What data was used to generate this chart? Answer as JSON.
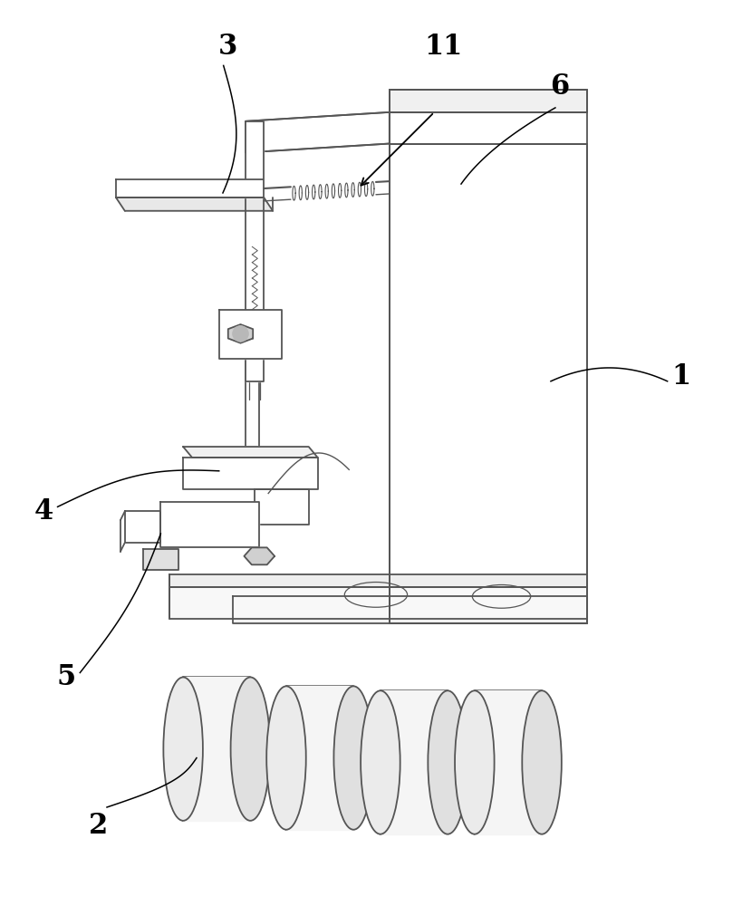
{
  "bg_color": "#ffffff",
  "line_color": "#555555",
  "label_color": "#000000",
  "figsize": [
    8.2,
    10.0
  ],
  "dpi": 100
}
